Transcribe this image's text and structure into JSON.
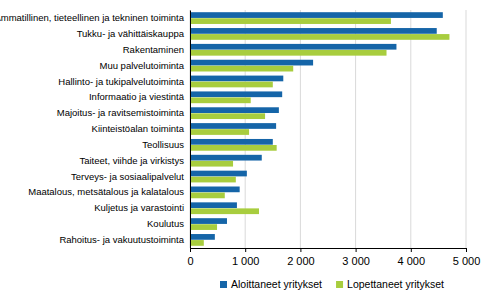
{
  "chart_data": {
    "type": "bar",
    "orientation": "horizontal",
    "grid": true,
    "legend": "bottom",
    "categories": [
      "Ammatillinen, tieteellinen ja tekninen toiminta",
      "Tukku- ja vähittäiskauppa",
      "Rakentaminen",
      "Muu palvelutoiminta",
      "Hallinto- ja tukipalvelutoiminta",
      "Informaatio ja viestintä",
      "Majoitus- ja ravitsemistoiminta",
      "Kiinteistöalan toiminta",
      "Teollisuus",
      "Taiteet, viihde ja virkistys",
      "Terveys- ja sosiaalipalvelut",
      "Maatalous, metsätalous ja kalatalous",
      "Kuljetus ja varastointi",
      "Koulutus",
      "Rahoitus- ja vakuutustoiminta"
    ],
    "series": [
      {
        "name": "Aloittaneet yritykset",
        "color": "#1565a8",
        "values": [
          4580,
          4470,
          3740,
          2230,
          1690,
          1670,
          1610,
          1560,
          1500,
          1300,
          1030,
          900,
          850,
          670,
          450
        ]
      },
      {
        "name": "Lopettaneet yritykset",
        "color": "#a8cd3e",
        "values": [
          3640,
          4700,
          3560,
          1870,
          1500,
          1100,
          1360,
          1070,
          1570,
          780,
          830,
          630,
          1250,
          490,
          250
        ]
      }
    ],
    "xlim": [
      0,
      5000
    ],
    "xticks": [
      0,
      {
        "value": 1000,
        "label": "1 000"
      },
      {
        "value": 2000,
        "label": "2 000"
      },
      {
        "value": 3000,
        "label": "3 000"
      },
      {
        "value": 4000,
        "label": "4 000"
      },
      {
        "value": 5000,
        "label": "5 000"
      }
    ]
  }
}
